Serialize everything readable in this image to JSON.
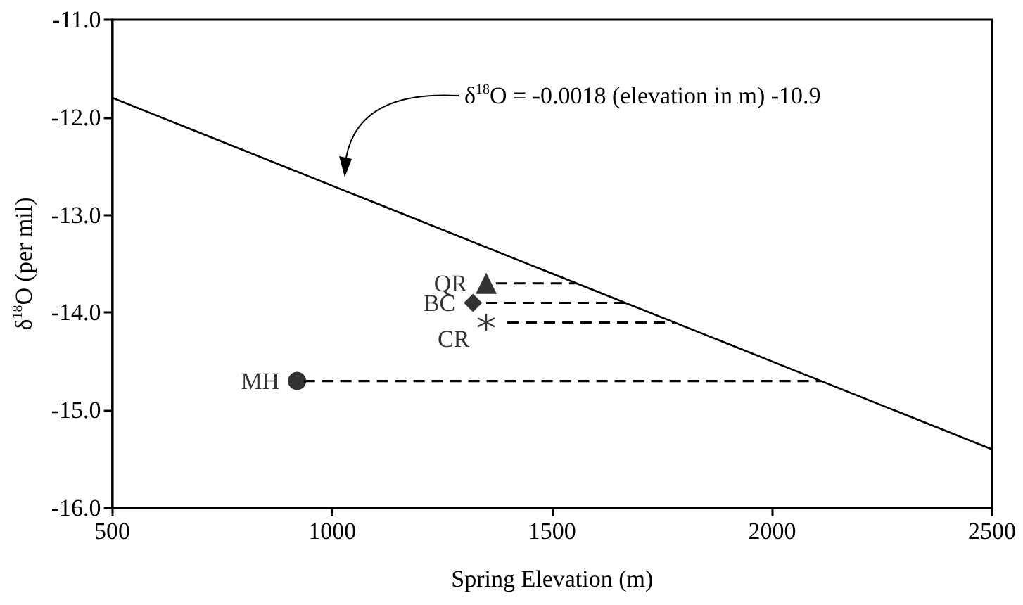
{
  "chart_data": {
    "type": "scatter",
    "xlabel": "Spring Elevation (m)",
    "ylabel": "δ$^{18}$O (per mil)",
    "annotations": [
      "δ$^{18}$O = -0.0018 (elevation in m) -10.9"
    ],
    "xlim": [
      500,
      2500
    ],
    "xticks": [
      500,
      1000,
      1500,
      2000,
      2500
    ],
    "ylim": [
      -16,
      -11
    ],
    "yticks": [
      {
        "value": -16,
        "label": "-16.0"
      },
      {
        "value": -15,
        "label": "-15.0"
      },
      {
        "value": -14,
        "label": "-14.0"
      },
      {
        "value": -13,
        "label": "-13.0"
      },
      {
        "value": -12,
        "label": "-12.0"
      },
      {
        "value": -11,
        "label": "-11.0"
      }
    ],
    "grid": false,
    "legend": false,
    "series": [
      {
        "type": "line",
        "color": "#000000",
        "marker": "none",
        "line_style": "solid",
        "x": [
          500,
          2500
        ],
        "values": [
          -11.8,
          -15.4
        ]
      },
      {
        "type": "line",
        "color": "#000000",
        "marker": "none",
        "line_style": "dashed",
        "x": [
          1372,
          1556
        ],
        "values": [
          -13.7,
          -13.7
        ]
      },
      {
        "type": "line",
        "color": "#000000",
        "marker": "none",
        "line_style": "dashed",
        "x": [
          1350,
          1667
        ],
        "values": [
          -13.9,
          -13.9
        ]
      },
      {
        "type": "line",
        "color": "#000000",
        "marker": "none",
        "line_style": "dashed",
        "x": [
          1398,
          1778
        ],
        "values": [
          -14.1,
          -14.1
        ]
      },
      {
        "type": "line",
        "color": "#000000",
        "marker": "none",
        "line_style": "dashed",
        "x": [
          935,
          2111
        ],
        "values": [
          -14.7,
          -14.7
        ]
      },
      {
        "name": "QR",
        "color": "#000000",
        "marker": "triangle",
        "x": [
          1350
        ],
        "values": [
          -13.7
        ]
      },
      {
        "name": "BC",
        "color": "#000000",
        "marker": "diamond",
        "x": [
          1320
        ],
        "values": [
          -13.9
        ]
      },
      {
        "name": "CR",
        "color": "#000000",
        "marker": "cross",
        "x": [
          1350
        ],
        "values": [
          -14.1
        ]
      },
      {
        "name": "MH",
        "color": "#000000",
        "marker": "circle",
        "x": [
          920
        ],
        "values": [
          -14.7
        ]
      }
    ]
  }
}
